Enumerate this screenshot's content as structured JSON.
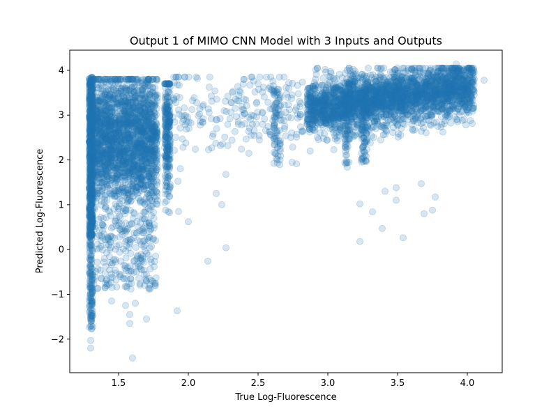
{
  "chart_data": {
    "type": "scatter",
    "title": "Output 1 of MIMO CNN Model with 3 Inputs and Outputs",
    "xlabel": "True Log-Fluorescence",
    "ylabel": "Predicted Log-Fluorescence",
    "xlim": [
      1.15,
      4.25
    ],
    "ylim": [
      -2.75,
      4.45
    ],
    "xticks": [
      1.5,
      2.0,
      2.5,
      3.0,
      3.5,
      4.0
    ],
    "xtick_labels": [
      "1.5",
      "2.0",
      "2.5",
      "3.0",
      "3.5",
      "4.0"
    ],
    "yticks": [
      -2,
      -1,
      0,
      1,
      2,
      3,
      4
    ],
    "ytick_labels": [
      "−2",
      "−1",
      "0",
      "1",
      "2",
      "3",
      "4"
    ],
    "grid": false,
    "legend": "none",
    "marker_color": "#1f77b4",
    "marker_alpha": 0.18,
    "marker": "circle",
    "clusters": [
      {
        "region": "vertical band near x=1.3",
        "x": [
          1.28,
          1.32
        ],
        "y": [
          -2.2,
          3.9
        ],
        "density": "very high"
      },
      {
        "region": "dense low-fluorescence cloud",
        "x": [
          1.3,
          1.8
        ],
        "y": [
          -0.8,
          3.8
        ],
        "density": "very high"
      },
      {
        "region": "vertical band near x=1.85",
        "x": [
          1.83,
          1.87
        ],
        "y": [
          -0.2,
          3.7
        ],
        "density": "high"
      },
      {
        "region": "sparse mid region",
        "x": [
          1.9,
          2.8
        ],
        "y": [
          0.0,
          3.8
        ],
        "density": "low"
      },
      {
        "region": "vertical band near x=2.63",
        "x": [
          2.61,
          2.66
        ],
        "y": [
          1.9,
          3.6
        ],
        "density": "medium"
      },
      {
        "region": "high-fluorescence cloud",
        "x": [
          2.8,
          4.1
        ],
        "y": [
          2.2,
          4.1
        ],
        "density": "very high"
      }
    ],
    "outliers": [
      {
        "x": 1.6,
        "y": -2.42
      },
      {
        "x": 1.3,
        "y": -2.2
      },
      {
        "x": 1.3,
        "y": -2.03
      },
      {
        "x": 1.58,
        "y": -1.65
      },
      {
        "x": 1.58,
        "y": -1.45
      },
      {
        "x": 1.7,
        "y": -1.55
      },
      {
        "x": 1.92,
        "y": -1.37
      },
      {
        "x": 2.14,
        "y": -0.26
      },
      {
        "x": 2.27,
        "y": 0.04
      },
      {
        "x": 1.55,
        "y": -1.25
      },
      {
        "x": 1.62,
        "y": -1.2
      },
      {
        "x": 1.45,
        "y": -1.15
      },
      {
        "x": 3.23,
        "y": 0.18
      },
      {
        "x": 3.54,
        "y": 0.26
      },
      {
        "x": 3.39,
        "y": 0.47
      },
      {
        "x": 3.69,
        "y": 0.8
      },
      {
        "x": 3.75,
        "y": 0.88
      },
      {
        "x": 3.32,
        "y": 0.84
      },
      {
        "x": 3.49,
        "y": 1.1
      },
      {
        "x": 3.23,
        "y": 1.02
      },
      {
        "x": 3.77,
        "y": 1.17
      },
      {
        "x": 3.41,
        "y": 1.3
      },
      {
        "x": 3.49,
        "y": 1.38
      },
      {
        "x": 3.67,
        "y": 1.47
      },
      {
        "x": 3.93,
        "y": 2.85
      },
      {
        "x": 4.12,
        "y": 3.78
      },
      {
        "x": 3.92,
        "y": 4.14
      },
      {
        "x": 2.4,
        "y": 3.8
      },
      {
        "x": 2.5,
        "y": 3.7
      },
      {
        "x": 2.0,
        "y": 0.62
      },
      {
        "x": 2.2,
        "y": 1.25
      },
      {
        "x": 2.24,
        "y": 1.0
      },
      {
        "x": 1.93,
        "y": 0.85
      }
    ]
  }
}
